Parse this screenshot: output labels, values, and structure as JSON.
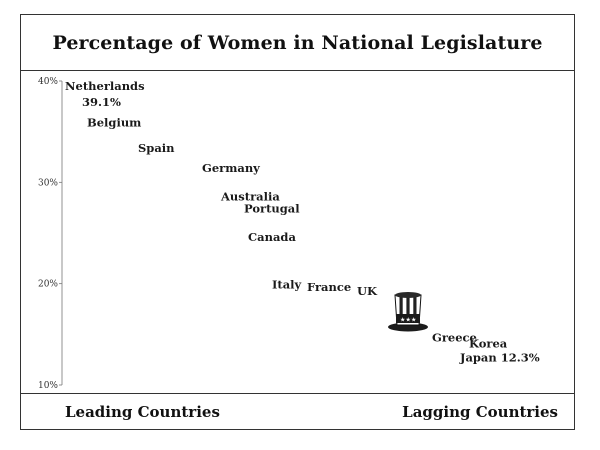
{
  "chart_data": {
    "type": "scatter",
    "title": "Percentage of Women in National Legislature",
    "y_ticks": [
      "40%",
      "30%",
      "20%",
      "10%"
    ],
    "ylim": [
      10,
      40
    ],
    "points": [
      {
        "label": "Netherlands",
        "value_label": "39.1%",
        "y": 39.1
      },
      {
        "label": "Belgium",
        "y": 35.5
      },
      {
        "label": "Spain",
        "y": 33.0
      },
      {
        "label": "Germany",
        "y": 31.0
      },
      {
        "label": "Australia",
        "y": 28.2
      },
      {
        "label": "Portugal",
        "y": 27.0
      },
      {
        "label": "Canada",
        "y": 24.2
      },
      {
        "label": "Italy",
        "y": 19.5
      },
      {
        "label": "France",
        "y": 19.3
      },
      {
        "label": "UK",
        "y": 18.9
      },
      {
        "label": "Greece",
        "y": 14.3
      },
      {
        "label": "Korea",
        "y": 13.7
      },
      {
        "label": "Japan",
        "value_label": "12.3%",
        "y": 12.3
      }
    ],
    "annotation_icon": "uncle-sam-top-hat-icon",
    "footer_left": "Leading Countries",
    "footer_right": "Lagging Countries",
    "grid": false
  }
}
